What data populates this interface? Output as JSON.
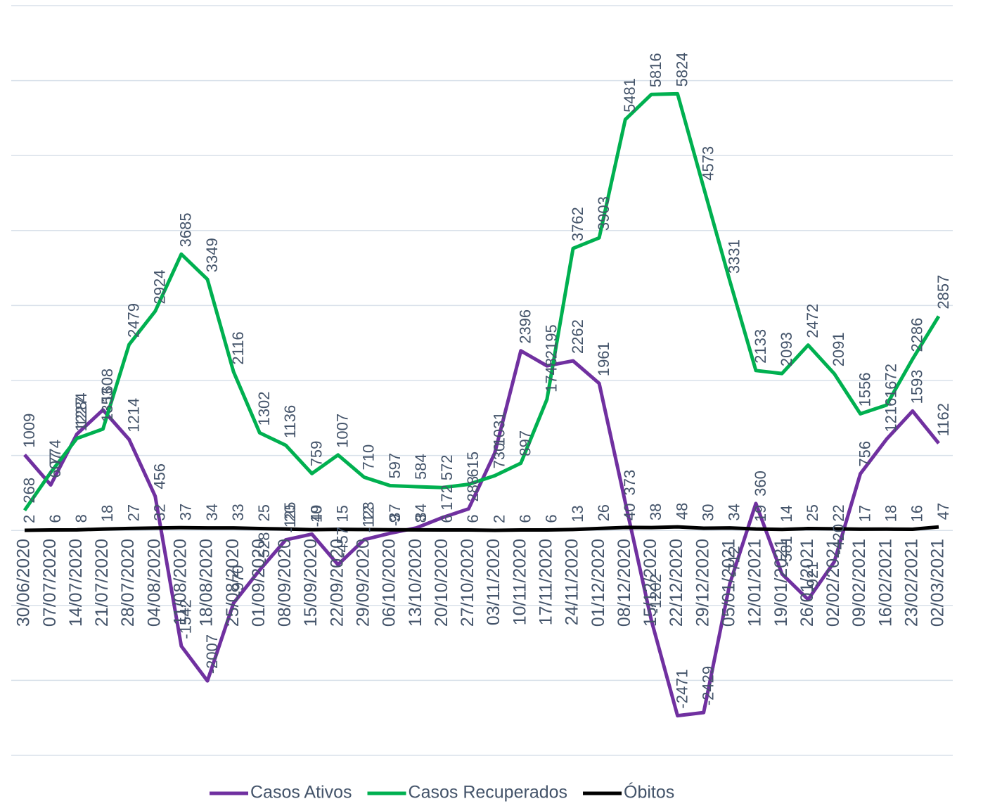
{
  "chart_data": {
    "type": "line",
    "categories": [
      "30/06/2020",
      "07/07/2020",
      "14/07/2020",
      "21/07/2020",
      "28/07/2020",
      "04/08/2020",
      "11/08/2020",
      "18/08/2020",
      "25/08/2020",
      "01/09/2020",
      "08/09/2020",
      "15/09/2020",
      "22/09/2020",
      "29/09/2020",
      "06/10/2020",
      "13/10/2020",
      "20/10/2020",
      "27/10/2020",
      "03/11/2020",
      "10/11/2020",
      "17/11/2020",
      "24/11/2020",
      "01/12/2020",
      "08/12/2020",
      "15/12/2020",
      "22/12/2020",
      "29/12/2020",
      "05/01/2021",
      "12/01/2021",
      "19/01/2021",
      "26/01/2021",
      "02/02/2021",
      "09/02/2021",
      "16/02/2021",
      "23/02/2021",
      "02/03/2021"
    ],
    "series": [
      {
        "name": "Casos Ativos",
        "color": "#7030a0",
        "values": [
          1009,
          607,
          1284,
          1608,
          1214,
          456,
          -1542,
          -2007,
          -970,
          -528,
          -125,
          -49,
          -457,
          -123,
          -37,
          34,
          172,
          288,
          1031,
          2396,
          2195,
          2262,
          1961,
          373,
          -1202,
          -2471,
          -2429,
          -712,
          360,
          -581,
          -921,
          -420,
          756,
          1216,
          1593,
          1162
        ]
      },
      {
        "name": "Casos Recuperados",
        "color": "#00b050",
        "values": [
          268,
          774,
          1227,
          1353,
          2479,
          2924,
          3685,
          3349,
          2116,
          1302,
          1136,
          759,
          1007,
          710,
          597,
          584,
          572,
          615,
          730,
          897,
          1748,
          3762,
          3903,
          5481,
          5816,
          5824,
          4573,
          3331,
          2133,
          2093,
          2472,
          2091,
          1556,
          1672,
          2286,
          2857
        ]
      },
      {
        "name": "Óbitos",
        "color": "#000000",
        "values": [
          2,
          6,
          8,
          18,
          27,
          32,
          37,
          34,
          33,
          25,
          20,
          10,
          15,
          12,
          9,
          8,
          6,
          6,
          2,
          6,
          6,
          13,
          26,
          40,
          38,
          48,
          30,
          34,
          19,
          14,
          25,
          22,
          17,
          18,
          16,
          47
        ]
      }
    ],
    "ylim": [
      -3000,
      7000
    ],
    "yticks": [
      -3000,
      -2000,
      -1000,
      0,
      1000,
      2000,
      3000,
      4000,
      5000,
      6000,
      7000
    ],
    "grid": true
  }
}
